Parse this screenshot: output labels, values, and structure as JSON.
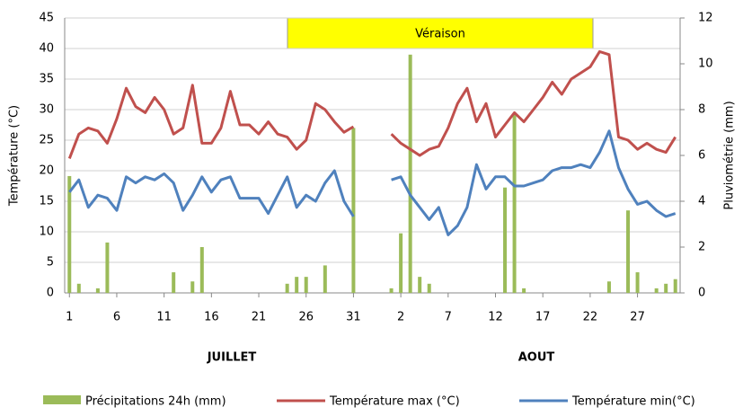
{
  "chart_data": {
    "type": "bar-line",
    "annotations": [
      "Véraison"
    ],
    "groups": [
      "JUILLET",
      "AOUT"
    ],
    "ylabel": "Température (°C)",
    "y2label": "Pluviométrie (mm)",
    "categories": [
      "1",
      null,
      null,
      null,
      null,
      "6",
      null,
      null,
      null,
      null,
      "11",
      null,
      null,
      null,
      null,
      "16",
      null,
      null,
      null,
      null,
      "21",
      null,
      null,
      null,
      null,
      "26",
      null,
      null,
      null,
      null,
      "31",
      null,
      null,
      null,
      null,
      "2",
      null,
      null,
      null,
      null,
      "7",
      null,
      null,
      null,
      null,
      "12",
      null,
      null,
      null,
      null,
      "17",
      null,
      null,
      null,
      null,
      "22",
      null,
      null,
      null,
      null,
      "27",
      null,
      null,
      null,
      null
    ],
    "ylim": [
      0,
      45
    ],
    "yticks": [
      0,
      5,
      10,
      15,
      20,
      25,
      30,
      35,
      40,
      45
    ],
    "y2lim": [
      0,
      12
    ],
    "y2ticks": [
      0,
      2,
      4,
      6,
      8,
      10,
      12
    ],
    "grid": true,
    "series": [
      {
        "name": "Précipitations 24h (mm)",
        "type": "bar",
        "axis": "y2",
        "color": "#9bbb59",
        "values": [
          5.1,
          0.4,
          0,
          0.2,
          2.2,
          0,
          0,
          0,
          0,
          0,
          0,
          0.9,
          0,
          0.5,
          2,
          0,
          0,
          0,
          0,
          0,
          0,
          0,
          0,
          0.4,
          0.7,
          0.7,
          0,
          1.2,
          0,
          0,
          7.2,
          null,
          null,
          null,
          0.2,
          2.6,
          10.4,
          0.7,
          0.4,
          0,
          0,
          0,
          0,
          0,
          0,
          0,
          4.6,
          7.8,
          0.2,
          0,
          0,
          0,
          0,
          0,
          0,
          0,
          0,
          0.5,
          0,
          3.6,
          0.9,
          0,
          0.2,
          0.4,
          0.6
        ]
      },
      {
        "name": "Température max (°C)",
        "type": "line",
        "color": "#c0504d",
        "values": [
          22,
          26,
          27,
          26.5,
          24.5,
          28.5,
          33.5,
          30.5,
          29.5,
          32,
          30,
          26,
          27,
          34,
          24.5,
          24.5,
          27,
          33,
          27.5,
          27.5,
          26,
          28,
          26,
          25.5,
          23.5,
          25,
          31,
          30,
          28,
          26.3,
          27.2,
          null,
          null,
          null,
          26,
          24.5,
          23.5,
          22.5,
          23.5,
          24,
          27,
          31,
          33.5,
          28,
          31,
          25.5,
          27.5,
          29.5,
          28,
          30,
          32,
          34.5,
          32.5,
          35,
          36,
          37,
          39.5,
          39,
          25.5,
          25,
          23.5,
          24.5,
          23.5,
          23,
          25.5
        ]
      },
      {
        "name": "Température min(°C)",
        "type": "line",
        "color": "#4f81bd",
        "values": [
          16.5,
          18.5,
          14,
          16,
          15.5,
          13.5,
          19,
          18,
          19,
          18.5,
          19.5,
          18,
          13.5,
          16,
          19,
          16.5,
          18.5,
          19,
          15.5,
          15.5,
          15.5,
          13,
          16,
          19,
          14,
          16,
          15,
          18,
          20,
          15,
          12.5,
          null,
          null,
          null,
          18.5,
          19,
          16,
          14,
          12,
          14,
          9.5,
          11,
          14,
          21,
          17,
          19,
          19,
          17.5,
          17.5,
          18,
          18.5,
          20,
          20.5,
          20.5,
          21,
          20.5,
          23,
          26.5,
          20.5,
          17,
          14.5,
          15,
          13.5,
          12.5,
          13
        ]
      }
    ]
  }
}
